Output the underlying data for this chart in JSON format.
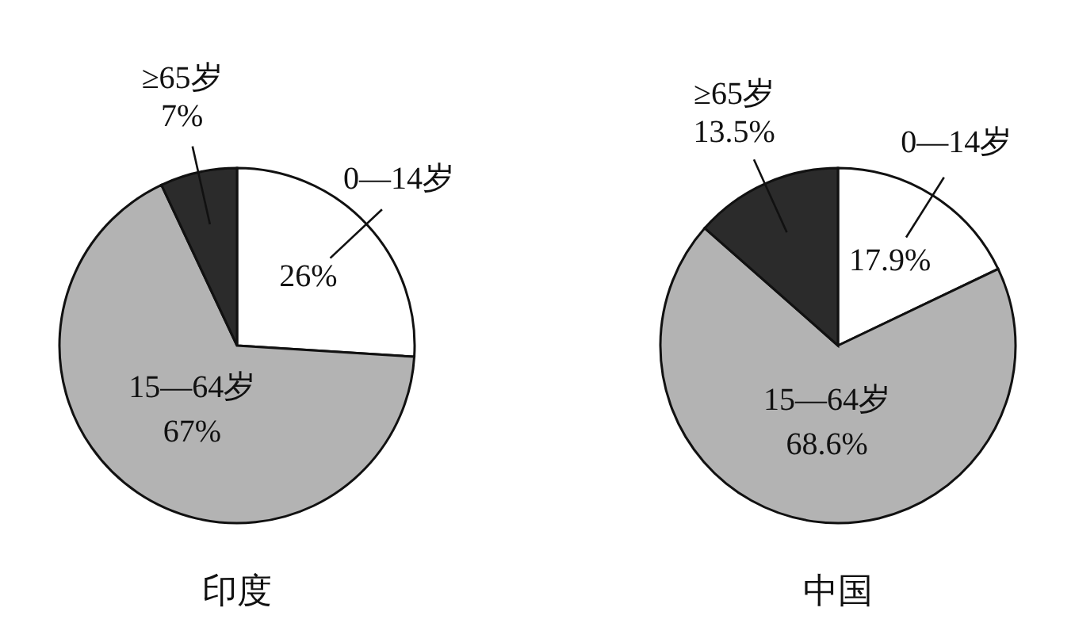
{
  "chart_data": [
    {
      "type": "pie",
      "title": "印度",
      "categories": [
        "0—14岁",
        "15—64岁",
        "≥65岁"
      ],
      "values": [
        26,
        67,
        7
      ],
      "value_labels": [
        "26%",
        "67%",
        "7%"
      ],
      "colors": [
        "#ffffff",
        "#b3b3b3",
        "#2b2b2b"
      ]
    },
    {
      "type": "pie",
      "title": "中国",
      "categories": [
        "0—14岁",
        "15—64岁",
        "≥65岁"
      ],
      "values": [
        17.9,
        68.6,
        13.5
      ],
      "value_labels": [
        "17.9%",
        "68.6%",
        "13.5%"
      ],
      "colors": [
        "#ffffff",
        "#b3b3b3",
        "#2b2b2b"
      ]
    }
  ]
}
